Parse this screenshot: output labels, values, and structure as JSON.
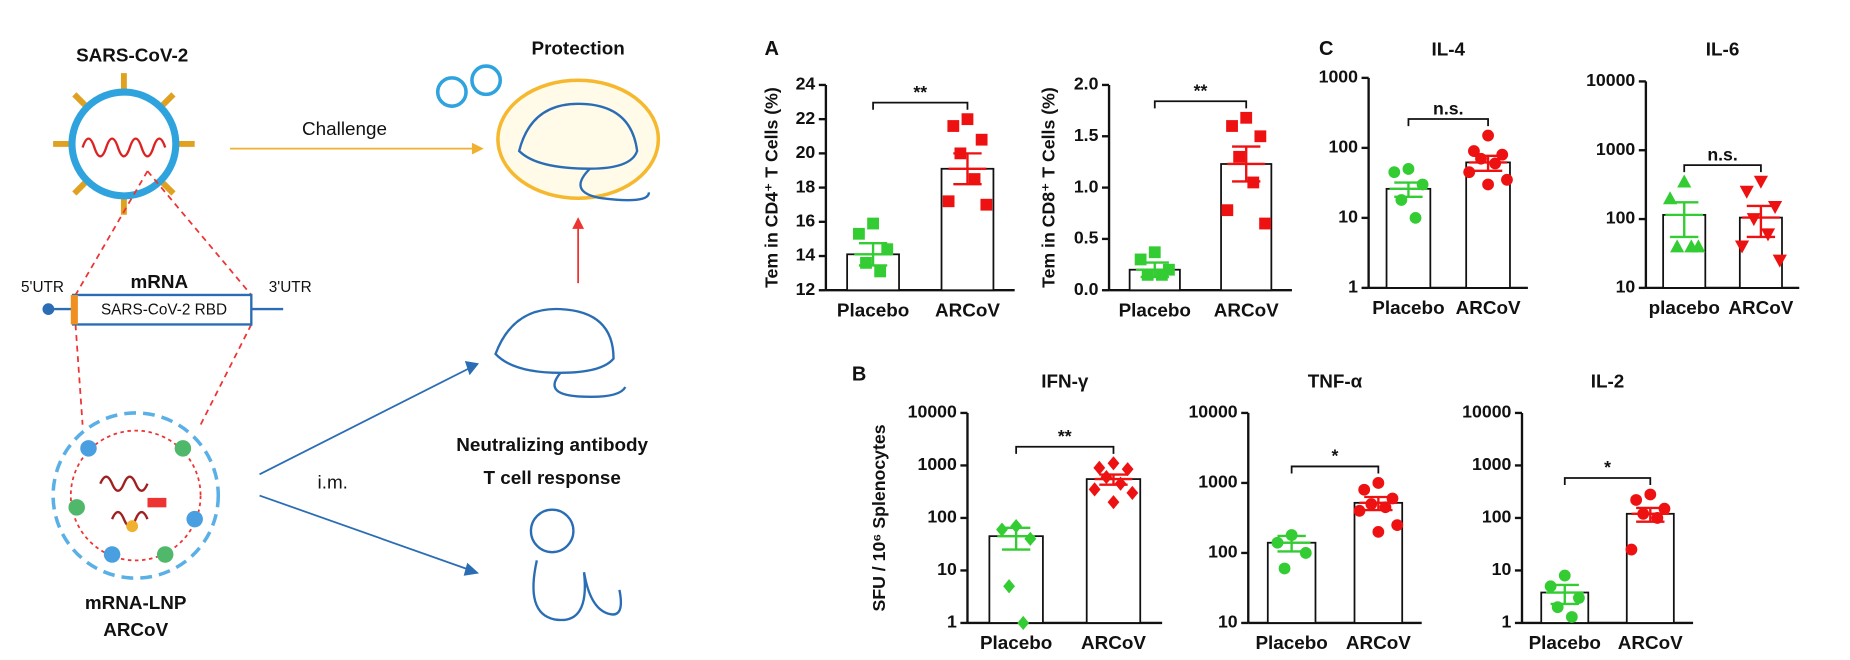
{
  "diagram": {
    "virus_label": "SARS-CoV-2",
    "protection": "Protection",
    "challenge": "Challenge",
    "mrna_title": "mRNA",
    "utr5": "5'UTR",
    "utr3": "3'UTR",
    "rbd": "SARS-CoV-2 RBD",
    "lnp_label": [
      "mRNA-LNP",
      "ARCoV"
    ],
    "route": "i.m.",
    "readouts": [
      "Neutralizing antibody",
      "T cell response"
    ]
  },
  "chart_data": [
    {
      "type": "bar",
      "panel": "A",
      "ylabel": "Tem in CD4⁺ T Cells (%)",
      "categories": [
        "Placebo",
        "ARCoV"
      ],
      "values": [
        14.1,
        19.1
      ],
      "errors": [
        0.65,
        0.9
      ],
      "points": [
        [
          15.9,
          15.3,
          14.4,
          13.6,
          13.1
        ],
        [
          22.0,
          21.6,
          20.8,
          20.0,
          18.5,
          17.2,
          17.0
        ]
      ],
      "colors": [
        "#33cc33",
        "#ee1111"
      ],
      "markers": [
        "square",
        "square"
      ],
      "significance": "**",
      "ylim": [
        12,
        24
      ],
      "yticks": [
        12,
        14,
        16,
        18,
        20,
        22,
        24
      ],
      "log_scale": false
    },
    {
      "type": "bar",
      "ylabel": "Tem in CD8⁺ T Cells (%)",
      "categories": [
        "Placebo",
        "ARCoV"
      ],
      "values": [
        0.2,
        1.23
      ],
      "errors": [
        0.07,
        0.17
      ],
      "points": [
        [
          0.37,
          0.3,
          0.2,
          0.15,
          0.15
        ],
        [
          1.68,
          1.6,
          1.5,
          1.3,
          1.05,
          0.78,
          0.65
        ]
      ],
      "colors": [
        "#33cc33",
        "#ee1111"
      ],
      "markers": [
        "square",
        "square"
      ],
      "significance": "**",
      "ylim": [
        0,
        2
      ],
      "yticks": [
        {
          "value": 0,
          "label": "0.0"
        },
        {
          "value": 0.5,
          "label": "0.5"
        },
        {
          "value": 1,
          "label": "1.0"
        },
        {
          "value": 1.5,
          "label": "1.5"
        },
        {
          "value": 2,
          "label": "2.0"
        }
      ],
      "log_scale": false
    },
    {
      "type": "bar",
      "panel": "C",
      "title": "IL-4",
      "categories": [
        "Placebo",
        "ARCoV"
      ],
      "values": [
        26,
        62
      ],
      "errors": [
        6,
        15
      ],
      "points": [
        [
          50,
          45,
          30,
          18,
          10
        ],
        [
          150,
          90,
          80,
          70,
          60,
          45,
          35,
          30
        ]
      ],
      "colors": [
        "#33cc33",
        "#ee1111"
      ],
      "markers": [
        "circle",
        "circle"
      ],
      "significance": "n.s.",
      "ylim": [
        1,
        1000
      ],
      "yticks": [
        1,
        10,
        100,
        1000
      ],
      "log_scale": true
    },
    {
      "type": "bar",
      "title": "IL-6",
      "categories": [
        "placebo",
        "ARCoV"
      ],
      "values": [
        115,
        105
      ],
      "errors": [
        60,
        50
      ],
      "points": [
        [
          350,
          200,
          40,
          40,
          40
        ],
        [
          350,
          250,
          150,
          100,
          60,
          40,
          25
        ]
      ],
      "colors": [
        "#33cc33",
        "#ee1111"
      ],
      "markers": [
        "triangle-up",
        "triangle-down"
      ],
      "significance": "n.s.",
      "ylim": [
        10,
        10000
      ],
      "yticks": [
        10,
        100,
        1000,
        10000
      ],
      "log_scale": true
    },
    {
      "type": "bar",
      "panel": "B",
      "title": "IFN-γ",
      "ylabel": "SFU / 10⁶ Splenocytes",
      "categories": [
        "Placebo",
        "ARCoV"
      ],
      "values": [
        45,
        550
      ],
      "errors": [
        20,
        120
      ],
      "points": [
        [
          70,
          60,
          40,
          5,
          1
        ],
        [
          1100,
          900,
          850,
          600,
          450,
          350,
          300,
          200
        ]
      ],
      "colors": [
        "#33cc33",
        "#ee1111"
      ],
      "markers": [
        "diamond",
        "diamond"
      ],
      "significance": "**",
      "ylim": [
        1,
        10000
      ],
      "yticks": [
        1,
        10,
        100,
        1000,
        10000
      ],
      "log_scale": true
    },
    {
      "type": "bar",
      "title": "TNF-α",
      "categories": [
        "Placebo",
        "ARCoV"
      ],
      "values": [
        140,
        520
      ],
      "errors": [
        35,
        110
      ],
      "points": [
        [
          180,
          140,
          100,
          60
        ],
        [
          1000,
          800,
          600,
          500,
          450,
          400,
          250,
          200
        ]
      ],
      "colors": [
        "#33cc33",
        "#ee1111"
      ],
      "markers": [
        "circle",
        "circle"
      ],
      "significance": "*",
      "ylim": [
        10,
        10000
      ],
      "yticks": [
        10,
        100,
        1000,
        10000
      ],
      "log_scale": true
    },
    {
      "type": "bar",
      "title": "IL-2",
      "categories": [
        "Placebo",
        "ARCoV"
      ],
      "values": [
        3.8,
        120
      ],
      "errors": [
        1.5,
        35
      ],
      "points": [
        [
          8,
          5,
          3,
          2,
          1.3
        ],
        [
          280,
          220,
          150,
          120,
          100,
          25
        ]
      ],
      "colors": [
        "#33cc33",
        "#ee1111"
      ],
      "markers": [
        "circle",
        "circle"
      ],
      "significance": "*",
      "ylim": [
        1,
        10000
      ],
      "yticks": [
        1,
        10,
        100,
        1000,
        10000
      ],
      "log_scale": true
    }
  ]
}
